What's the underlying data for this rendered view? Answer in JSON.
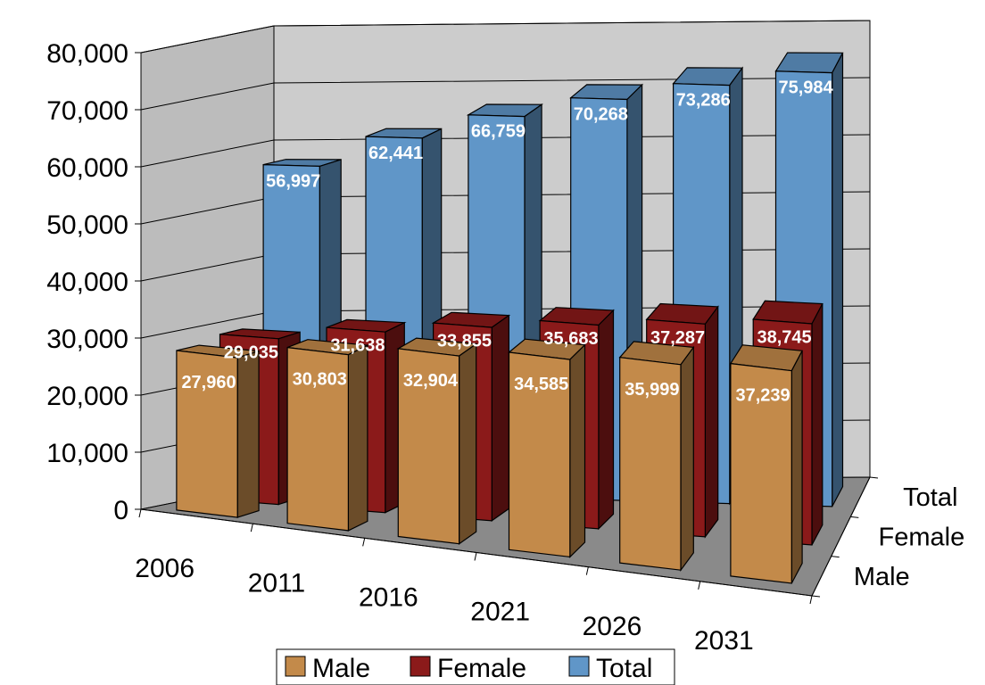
{
  "chart_data": {
    "type": "bar",
    "style": "3d-clustered-depth",
    "title": "",
    "xlabel": "",
    "ylabel": "",
    "categories": [
      "2006",
      "2011",
      "2016",
      "2021",
      "2026",
      "2031"
    ],
    "series": [
      {
        "name": "Male",
        "color": "#c38a4a",
        "values": [
          27960,
          30803,
          32904,
          34585,
          35999,
          37239
        ],
        "labels": [
          "27,960",
          "30,803",
          "32,904",
          "34,585",
          "35,999",
          "37,239"
        ]
      },
      {
        "name": "Female",
        "color": "#8b1a1a",
        "values": [
          29035,
          31638,
          33855,
          35683,
          37287,
          38745
        ],
        "labels": [
          "29,035",
          "31,638",
          "33,855",
          "35,683",
          "37,287",
          "38,745"
        ]
      },
      {
        "name": "Total",
        "color": "#6096c8",
        "values": [
          56997,
          62441,
          66759,
          70268,
          73286,
          75984
        ],
        "labels": [
          "56,997",
          "62,441",
          "66,759",
          "70,268",
          "73,286",
          "75,984"
        ]
      }
    ],
    "ylim": [
      0,
      80000
    ],
    "yticks": [
      0,
      10000,
      20000,
      30000,
      40000,
      50000,
      60000,
      70000,
      80000
    ],
    "ytick_labels": [
      "0",
      "10,000",
      "20,000",
      "30,000",
      "40,000",
      "50,000",
      "60,000",
      "70,000",
      "80,000"
    ],
    "depth_labels": [
      "Male",
      "Female",
      "Total"
    ],
    "grid": true,
    "legend_position": "bottom",
    "walls": {
      "back": "#cccccc",
      "side": "#bcbcbc",
      "floor": "#8a8a8a"
    }
  }
}
